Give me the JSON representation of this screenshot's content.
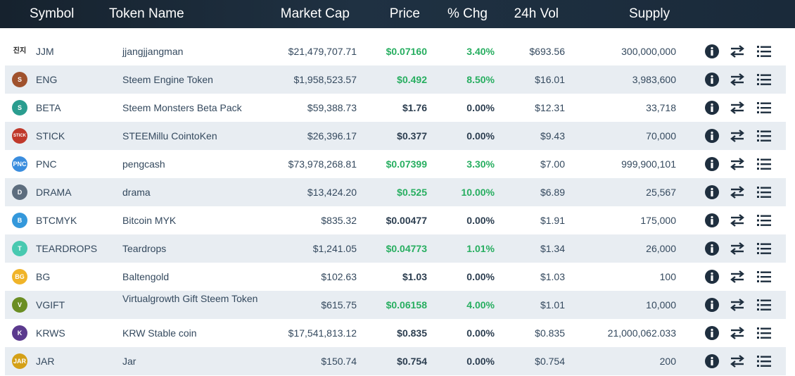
{
  "headers": {
    "symbol": "Symbol",
    "name": "Token Name",
    "market_cap": "Market Cap",
    "price": "Price",
    "change": "% Chg",
    "volume": "24h Vol",
    "supply": "Supply"
  },
  "colors": {
    "header_bg": "#1b2a3a",
    "positive": "#27ae60",
    "row_alt": "#e8edf2",
    "icon_dark": "#1f2f3f"
  },
  "rows": [
    {
      "symbol": "JJM",
      "name": "jjangjjangman",
      "market_cap": "$21,479,707.71",
      "price": "$0.07160",
      "change": "3.40%",
      "volume": "$693.56",
      "supply": "300,000,000",
      "up": true,
      "logo_text": "진지",
      "logo_color": "#ffffff"
    },
    {
      "symbol": "ENG",
      "name": "Steem Engine Token",
      "market_cap": "$1,958,523.57",
      "price": "$0.492",
      "change": "8.50%",
      "volume": "$16.01",
      "supply": "3,983,600",
      "up": true,
      "logo_text": "S",
      "logo_color": "#a0522d"
    },
    {
      "symbol": "BETA",
      "name": "Steem Monsters Beta Pack",
      "market_cap": "$59,388.73",
      "price": "$1.76",
      "change": "0.00%",
      "volume": "$12.31",
      "supply": "33,718",
      "up": false,
      "logo_text": "S",
      "logo_color": "#2a9d8f"
    },
    {
      "symbol": "STICK",
      "name": "STEEMillu CointoKen",
      "market_cap": "$26,396.17",
      "price": "$0.377",
      "change": "0.00%",
      "volume": "$9.43",
      "supply": "70,000",
      "up": false,
      "logo_text": "STICK",
      "logo_color": "#c0392b"
    },
    {
      "symbol": "PNC",
      "name": "pengcash",
      "market_cap": "$73,978,268.81",
      "price": "$0.07399",
      "change": "3.30%",
      "volume": "$7.00",
      "supply": "999,900,101",
      "up": true,
      "logo_text": "PNC",
      "logo_color": "#3a8dde"
    },
    {
      "symbol": "DRAMA",
      "name": "drama",
      "market_cap": "$13,424.20",
      "price": "$0.525",
      "change": "10.00%",
      "volume": "$6.89",
      "supply": "25,567",
      "up": true,
      "logo_text": "D",
      "logo_color": "#5d6d7e"
    },
    {
      "symbol": "BTCMYK",
      "name": "Bitcoin MYK",
      "market_cap": "$835.32",
      "price": "$0.00477",
      "change": "0.00%",
      "volume": "$1.91",
      "supply": "175,000",
      "up": false,
      "logo_text": "B",
      "logo_color": "#3498db"
    },
    {
      "symbol": "TEARDROPS",
      "name": "Teardrops",
      "market_cap": "$1,241.05",
      "price": "$0.04773",
      "change": "1.01%",
      "volume": "$1.34",
      "supply": "26,000",
      "up": true,
      "logo_text": "T",
      "logo_color": "#48c9b0"
    },
    {
      "symbol": "BG",
      "name": "Baltengold",
      "market_cap": "$102.63",
      "price": "$1.03",
      "change": "0.00%",
      "volume": "$1.03",
      "supply": "100",
      "up": false,
      "logo_text": "BG",
      "logo_color": "#f0b429"
    },
    {
      "symbol": "VGIFT",
      "name": "Virtualgrowth Gift Steem Token",
      "market_cap": "$615.75",
      "price": "$0.06158",
      "change": "4.00%",
      "volume": "$1.01",
      "supply": "10,000",
      "up": true,
      "logo_text": "V",
      "logo_color": "#6b8e23",
      "two_line": true
    },
    {
      "symbol": "KRWS",
      "name": "KRW Stable coin",
      "market_cap": "$17,541,813.12",
      "price": "$0.835",
      "change": "0.00%",
      "volume": "$0.835",
      "supply": "21,000,062.033",
      "up": false,
      "logo_text": "K",
      "logo_color": "#5b3a8e"
    },
    {
      "symbol": "JAR",
      "name": "Jar",
      "market_cap": "$150.74",
      "price": "$0.754",
      "change": "0.00%",
      "volume": "$0.754",
      "supply": "200",
      "up": false,
      "logo_text": "JAR",
      "logo_color": "#d4a017"
    }
  ],
  "row_actions": [
    {
      "icon": "info-icon"
    },
    {
      "icon": "exchange-arrows-icon"
    },
    {
      "icon": "list-icon"
    }
  ]
}
